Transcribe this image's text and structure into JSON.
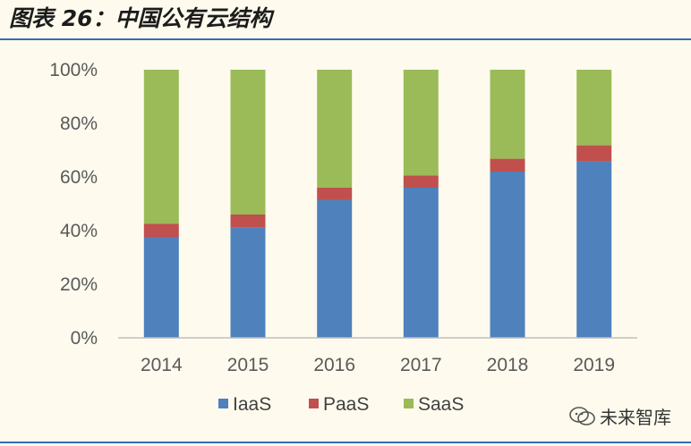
{
  "figure": {
    "title": "图表 26：中国公有云结构"
  },
  "watermark": {
    "text": "未来智库",
    "icon": "wechat-icon"
  },
  "colors": {
    "iaas": "#4f81bd",
    "paas": "#c0504d",
    "saas": "#9bbb59",
    "axis": "#bfbfbf",
    "rule": "#2f6eb5",
    "background": "#fefbee"
  },
  "chart_data": {
    "type": "bar",
    "stacked": true,
    "categories": [
      "2014",
      "2015",
      "2016",
      "2017",
      "2018",
      "2019"
    ],
    "series": [
      {
        "name": "IaaS",
        "values": [
          37.5,
          41.2,
          51.5,
          56.0,
          62.0,
          65.8
        ],
        "color": "#4f81bd"
      },
      {
        "name": "PaaS",
        "values": [
          5.1,
          4.8,
          4.5,
          4.5,
          4.8,
          6.0
        ],
        "color": "#c0504d"
      },
      {
        "name": "SaaS",
        "values": [
          57.4,
          54.0,
          44.0,
          39.5,
          33.2,
          28.2
        ],
        "color": "#9bbb59"
      }
    ],
    "ylim": [
      0,
      100
    ],
    "yticks": [
      "0%",
      "20%",
      "40%",
      "60%",
      "80%",
      "100%"
    ],
    "ytick_values": [
      0,
      20,
      40,
      60,
      80,
      100
    ],
    "grid": false,
    "legend": "bottom"
  }
}
